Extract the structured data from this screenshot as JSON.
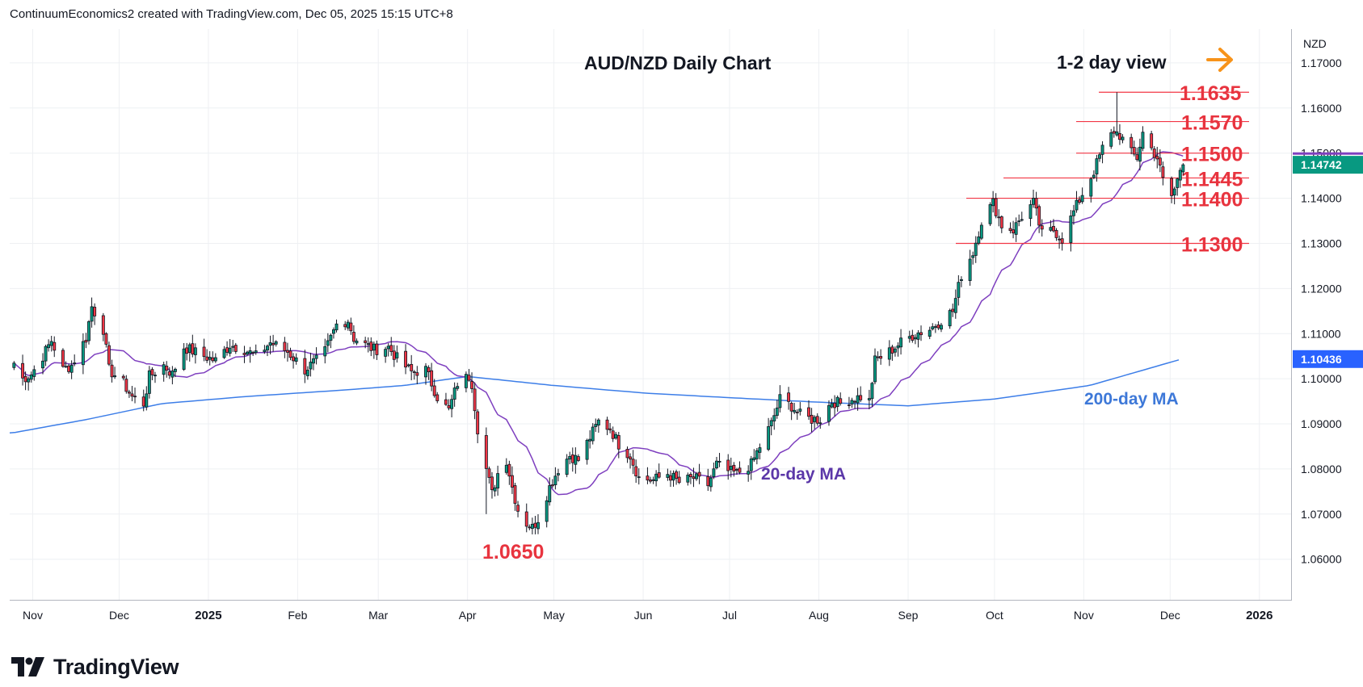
{
  "header": {
    "credit": "ContinuumEconomics2 created with TradingView.com, Dec 05, 2025 15:15 UTC+8"
  },
  "footer": {
    "brand": "TradingView",
    "logo_icon": "tradingview-logo-icon"
  },
  "colors": {
    "up": "#089981",
    "down": "#f23645",
    "ma20": "#7e3fbf",
    "ma200": "#3d7ee8",
    "level": "#f23645",
    "arrow": "#f7931a",
    "grid": "#eef0f3",
    "price_badge": "#089981",
    "ma200_badge": "#2962ff"
  },
  "chart_data": {
    "type": "candlestick",
    "title": "AUD/NZD Daily Chart",
    "view_label": "1-2 day view",
    "view_arrow_icon": "arrow-right-icon",
    "currency_label": "NZD",
    "ylim": [
      1.051,
      1.1775
    ],
    "y_ticks": [
      "1.17000",
      "1.16000",
      "1.15000",
      "1.14000",
      "1.13000",
      "1.12000",
      "1.11000",
      "1.10000",
      "1.09000",
      "1.08000",
      "1.07000",
      "1.06000"
    ],
    "x_ticks": [
      "Nov",
      "Dec",
      "2025",
      "Feb",
      "Mar",
      "Apr",
      "May",
      "Jun",
      "Jul",
      "Aug",
      "Sep",
      "Oct",
      "Nov",
      "Dec",
      "2026"
    ],
    "x_ticks_bold": [
      "2025",
      "2026"
    ],
    "current_price": 1.14742,
    "current_price_label": "1.14742",
    "ma200_value": 1.10436,
    "ma200_label": "1.10436",
    "levels": [
      {
        "value": 1.1635,
        "label": "1.1635"
      },
      {
        "value": 1.157,
        "label": "1.1570"
      },
      {
        "value": 1.15,
        "label": "1.1500"
      },
      {
        "value": 1.1445,
        "label": "1.1445"
      },
      {
        "value": 1.14,
        "label": "1.1400"
      },
      {
        "value": 1.13,
        "label": "1.1300"
      }
    ],
    "low_annotation": {
      "value": 1.065,
      "label": "1.0650"
    },
    "ma20_label": "20-day MA",
    "ma200_series_label": "200-day MA",
    "close_anchors": [
      [
        "2024-10-25",
        1.1035
      ],
      [
        "2024-10-28",
        1.1
      ],
      [
        "2024-10-31",
        1.101
      ],
      [
        "2024-11-04",
        1.105
      ],
      [
        "2024-11-07",
        1.1085
      ],
      [
        "2024-11-11",
        1.102
      ],
      [
        "2024-11-14",
        1.103
      ],
      [
        "2024-11-19",
        1.109
      ],
      [
        "2024-11-21",
        1.116
      ],
      [
        "2024-11-25",
        1.111
      ],
      [
        "2024-11-27",
        1.102
      ],
      [
        "2024-12-02",
        1.099
      ],
      [
        "2024-12-05",
        1.096
      ],
      [
        "2024-12-09",
        1.0945
      ],
      [
        "2024-12-11",
        1.1005
      ],
      [
        "2024-12-16",
        1.103
      ],
      [
        "2024-12-19",
        1.101
      ],
      [
        "2024-12-23",
        1.107
      ],
      [
        "2024-12-30",
        1.105
      ],
      [
        "2025-01-03",
        1.104
      ],
      [
        "2025-01-08",
        1.1075
      ],
      [
        "2025-01-13",
        1.1065
      ],
      [
        "2025-01-17",
        1.105
      ],
      [
        "2025-01-22",
        1.108
      ],
      [
        "2025-01-28",
        1.106
      ],
      [
        "2025-02-03",
        1.102
      ],
      [
        "2025-02-07",
        1.104
      ],
      [
        "2025-02-10",
        1.106
      ],
      [
        "2025-02-14",
        1.112
      ],
      [
        "2025-02-18",
        1.113
      ],
      [
        "2025-02-20",
        1.109
      ],
      [
        "2025-02-24",
        1.1075
      ],
      [
        "2025-02-27",
        1.1065
      ],
      [
        "2025-03-04",
        1.107
      ],
      [
        "2025-03-07",
        1.1045
      ],
      [
        "2025-03-12",
        1.1015
      ],
      [
        "2025-03-17",
        1.102
      ],
      [
        "2025-03-21",
        1.096
      ],
      [
        "2025-03-25",
        1.093
      ],
      [
        "2025-03-28",
        1.099
      ],
      [
        "2025-04-01",
        1.1005
      ],
      [
        "2025-04-02",
        1.099
      ],
      [
        "2025-04-04",
        1.089
      ],
      [
        "2025-04-07",
        1.08
      ],
      [
        "2025-04-09",
        1.0745
      ],
      [
        "2025-04-11",
        1.079
      ],
      [
        "2025-04-14",
        1.082
      ],
      [
        "2025-04-16",
        1.076
      ],
      [
        "2025-04-18",
        1.071
      ],
      [
        "2025-04-21",
        1.068
      ],
      [
        "2025-04-23",
        1.067
      ],
      [
        "2025-04-25",
        1.069
      ],
      [
        "2025-04-29",
        1.076
      ],
      [
        "2025-05-02",
        1.08
      ],
      [
        "2025-05-06",
        1.083
      ],
      [
        "2025-05-09",
        1.082
      ],
      [
        "2025-05-13",
        1.087
      ],
      [
        "2025-05-16",
        1.0905
      ],
      [
        "2025-05-20",
        1.089
      ],
      [
        "2025-05-23",
        1.0855
      ],
      [
        "2025-05-27",
        1.083
      ],
      [
        "2025-05-30",
        1.078
      ],
      [
        "2025-06-04",
        1.0775
      ],
      [
        "2025-06-09",
        1.079
      ],
      [
        "2025-06-13",
        1.077
      ],
      [
        "2025-06-18",
        1.078
      ],
      [
        "2025-06-23",
        1.0765
      ],
      [
        "2025-06-26",
        1.081
      ],
      [
        "2025-06-30",
        1.0795
      ],
      [
        "2025-07-03",
        1.079
      ],
      [
        "2025-07-08",
        1.081
      ],
      [
        "2025-07-11",
        1.085
      ],
      [
        "2025-07-15",
        1.09
      ],
      [
        "2025-07-18",
        1.0955
      ],
      [
        "2025-07-22",
        1.094
      ],
      [
        "2025-07-25",
        1.092
      ],
      [
        "2025-07-29",
        1.091
      ],
      [
        "2025-08-01",
        1.091
      ],
      [
        "2025-08-05",
        1.095
      ],
      [
        "2025-08-08",
        1.0945
      ],
      [
        "2025-08-12",
        1.0955
      ],
      [
        "2025-08-15",
        1.096
      ],
      [
        "2025-08-18",
        1.095
      ],
      [
        "2025-08-20",
        1.104
      ],
      [
        "2025-08-25",
        1.106
      ],
      [
        "2025-08-29",
        1.108
      ],
      [
        "2025-09-03",
        1.11
      ],
      [
        "2025-09-08",
        1.111
      ],
      [
        "2025-09-12",
        1.113
      ],
      [
        "2025-09-16",
        1.115
      ],
      [
        "2025-09-19",
        1.123
      ],
      [
        "2025-09-23",
        1.128
      ],
      [
        "2025-09-26",
        1.135
      ],
      [
        "2025-09-30",
        1.139
      ],
      [
        "2025-10-03",
        1.134
      ],
      [
        "2025-10-07",
        1.133
      ],
      [
        "2025-10-10",
        1.136
      ],
      [
        "2025-10-14",
        1.139
      ],
      [
        "2025-10-17",
        1.132
      ],
      [
        "2025-10-21",
        1.133
      ],
      [
        "2025-10-24",
        1.131
      ],
      [
        "2025-10-28",
        1.137
      ],
      [
        "2025-10-31",
        1.141
      ],
      [
        "2025-11-04",
        1.146
      ],
      [
        "2025-11-07",
        1.151
      ],
      [
        "2025-11-11",
        1.155
      ],
      [
        "2025-11-13",
        1.154
      ],
      [
        "2025-11-17",
        1.15
      ],
      [
        "2025-11-19",
        1.149
      ],
      [
        "2025-11-21",
        1.1545
      ],
      [
        "2025-11-24",
        1.151
      ],
      [
        "2025-11-26",
        1.149
      ],
      [
        "2025-11-28",
        1.144
      ],
      [
        "2025-12-01",
        1.1405
      ],
      [
        "2025-12-02",
        1.142
      ],
      [
        "2025-12-03",
        1.144
      ],
      [
        "2025-12-04",
        1.1465
      ],
      [
        "2025-12-05",
        1.14742
      ]
    ],
    "ma200_anchors": [
      [
        "2024-10-25",
        1.088
      ],
      [
        "2024-11-20",
        1.091
      ],
      [
        "2024-12-16",
        1.0945
      ],
      [
        "2025-01-13",
        1.096
      ],
      [
        "2025-02-17",
        1.0975
      ],
      [
        "2025-03-10",
        1.0985
      ],
      [
        "2025-04-01",
        1.1005
      ],
      [
        "2025-05-01",
        1.0985
      ],
      [
        "2025-06-02",
        1.0968
      ],
      [
        "2025-07-01",
        1.0958
      ],
      [
        "2025-08-01",
        1.0948
      ],
      [
        "2025-09-01",
        1.094
      ],
      [
        "2025-10-01",
        1.0955
      ],
      [
        "2025-11-03",
        1.0985
      ],
      [
        "2025-12-05",
        1.10436
      ]
    ]
  }
}
